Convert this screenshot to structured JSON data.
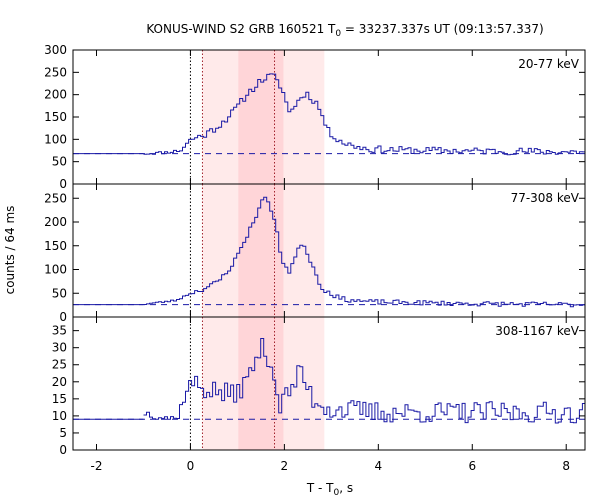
{
  "chart_data": {
    "type": "line",
    "title_main": "KONUS-WIND S2 GRB 160521 T",
    "title_sub": "0",
    "title_rest": " = 33237.337s UT (09:13:57.337)",
    "xlabel_main": "T - T",
    "xlabel_sub": "0",
    "xlabel_rest": ", s",
    "ylabel": "counts / 64 ms",
    "xlim": [
      -2.5,
      8.4
    ],
    "x_ticks": [
      -2,
      0,
      2,
      4,
      6,
      8
    ],
    "x_tick_labels": [
      "-2",
      "0",
      "2",
      "4",
      "6",
      "8"
    ],
    "shaded_regions": [
      {
        "name": "outer-interval",
        "x0": 0.256,
        "x1": 2.85,
        "color": "#ffeaea"
      },
      {
        "name": "inner-interval",
        "x0": 1.02,
        "x1": 1.98,
        "color": "#ffd5d8"
      }
    ],
    "vertical_markers": [
      {
        "name": "marker-t0",
        "x": 0.0
      },
      {
        "name": "marker-start",
        "x": 0.256
      },
      {
        "name": "marker-end",
        "x": 1.79
      }
    ],
    "line_color": "#1a1aa6",
    "panels": [
      {
        "label": "20-77 keV",
        "ylim": [
          0,
          300
        ],
        "y_ticks": [
          0,
          50,
          100,
          150,
          200,
          250,
          300
        ],
        "y_tick_labels": [
          "0",
          "50",
          "100",
          "150",
          "200",
          "250",
          "300"
        ],
        "background": 68,
        "anchors": [
          [
            -2.5,
            68
          ],
          [
            -1,
            68
          ],
          [
            -0.6,
            70
          ],
          [
            -0.2,
            75
          ],
          [
            0,
            100
          ],
          [
            0.3,
            110
          ],
          [
            0.6,
            130
          ],
          [
            0.9,
            160
          ],
          [
            1.2,
            200
          ],
          [
            1.5,
            232
          ],
          [
            1.75,
            244
          ],
          [
            1.95,
            215
          ],
          [
            2.1,
            160
          ],
          [
            2.25,
            180
          ],
          [
            2.45,
            205
          ],
          [
            2.7,
            180
          ],
          [
            2.95,
            115
          ],
          [
            3.3,
            90
          ],
          [
            3.8,
            78
          ],
          [
            4.5,
            76
          ],
          [
            6,
            74
          ],
          [
            8.4,
            72
          ]
        ],
        "noise": 8,
        "seed": 11
      },
      {
        "label": "77-308 keV",
        "ylim": [
          0,
          280
        ],
        "y_ticks": [
          0,
          50,
          100,
          150,
          200,
          250
        ],
        "y_tick_labels": [
          "0",
          "50",
          "100",
          "150",
          "200",
          "250"
        ],
        "background": 26,
        "anchors": [
          [
            -2.5,
            26
          ],
          [
            -1,
            27
          ],
          [
            -0.3,
            35
          ],
          [
            0,
            50
          ],
          [
            0.3,
            60
          ],
          [
            0.6,
            75
          ],
          [
            0.9,
            110
          ],
          [
            1.2,
            170
          ],
          [
            1.45,
            225
          ],
          [
            1.6,
            258
          ],
          [
            1.8,
            200
          ],
          [
            1.95,
            120
          ],
          [
            2.1,
            95
          ],
          [
            2.25,
            130
          ],
          [
            2.38,
            160
          ],
          [
            2.55,
            120
          ],
          [
            2.8,
            60
          ],
          [
            3.2,
            38
          ],
          [
            3.8,
            32
          ],
          [
            6,
            28
          ],
          [
            8.4,
            26
          ]
        ],
        "noise": 5,
        "seed": 23
      },
      {
        "label": "308-1167 keV",
        "ylim": [
          0,
          39
        ],
        "y_ticks": [
          0,
          5,
          10,
          15,
          20,
          25,
          30,
          35
        ],
        "y_tick_labels": [
          "0",
          "5",
          "10",
          "15",
          "20",
          "25",
          "30",
          "35"
        ],
        "background": 9,
        "anchors": [
          [
            -2.5,
            9
          ],
          [
            -1,
            11
          ],
          [
            -0.3,
            9
          ],
          [
            0,
            20
          ],
          [
            0.3,
            18
          ],
          [
            0.6,
            17
          ],
          [
            0.9,
            16
          ],
          [
            1.2,
            20
          ],
          [
            1.5,
            30
          ],
          [
            1.7,
            27
          ],
          [
            1.9,
            13
          ],
          [
            2.15,
            18
          ],
          [
            2.35,
            23
          ],
          [
            2.6,
            15
          ],
          [
            3.0,
            12
          ],
          [
            4,
            11
          ],
          [
            6,
            11
          ],
          [
            8.4,
            11
          ]
        ],
        "noise": 3.2,
        "seed": 37
      }
    ]
  }
}
